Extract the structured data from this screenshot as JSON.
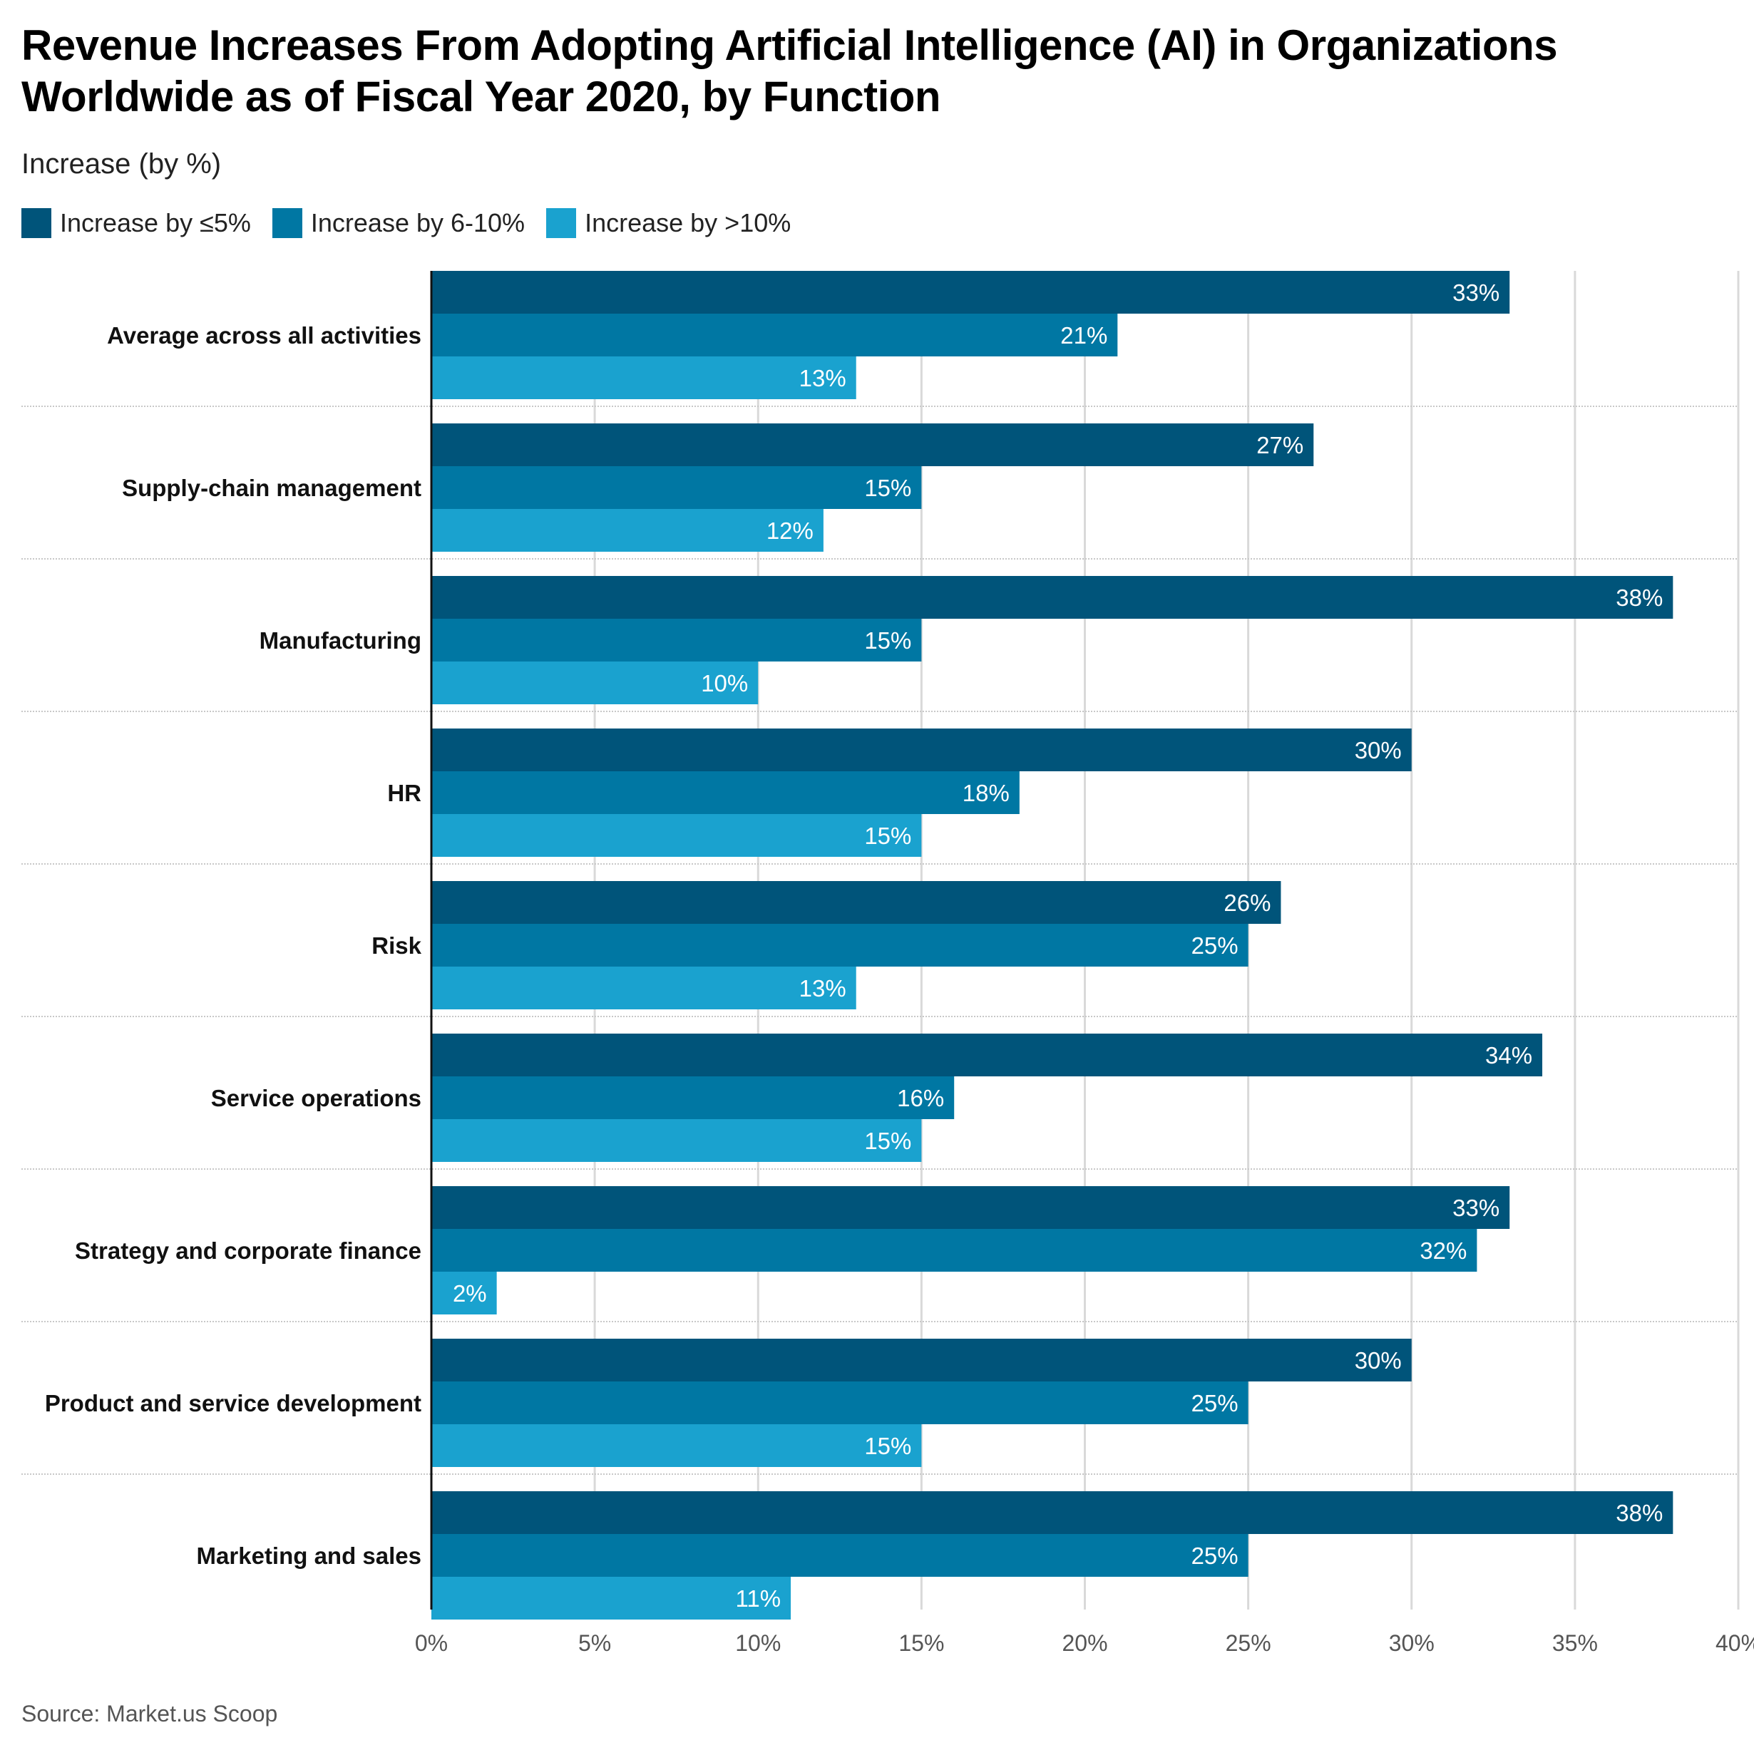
{
  "header": {
    "title": "Revenue Increases From Adopting Artificial Intelligence (AI) in Organizations Worldwide as of Fiscal Year 2020, by Function",
    "subtitle": "Increase (by %)"
  },
  "footer": {
    "source": "Source: Market.us Scoop"
  },
  "chart_data": {
    "type": "bar",
    "orientation": "horizontal",
    "title": "Revenue Increases From Adopting Artificial Intelligence (AI) in Organizations Worldwide as of Fiscal Year 2020, by Function",
    "subtitle": "Increase (by %)",
    "xlabel": "",
    "ylabel": "",
    "xlim": [
      0,
      40
    ],
    "x_ticks": [
      0,
      5,
      10,
      15,
      20,
      25,
      30,
      35,
      40
    ],
    "x_tick_labels": [
      "0%",
      "5%",
      "10%",
      "15%",
      "20%",
      "25%",
      "30%",
      "35%",
      "40%"
    ],
    "grid": true,
    "legend_position": "top-left",
    "categories": [
      "Average across all activities",
      "Supply-chain management",
      "Manufacturing",
      "HR",
      "Risk",
      "Service operations",
      "Strategy and corporate finance",
      "Product and service development",
      "Marketing and sales"
    ],
    "series": [
      {
        "name": "Increase by ≤5%",
        "color": "#00547a",
        "values": [
          33,
          27,
          38,
          30,
          26,
          34,
          33,
          30,
          38
        ]
      },
      {
        "name": "Increase by 6-10%",
        "color": "#0077a3",
        "values": [
          21,
          15,
          15,
          18,
          25,
          16,
          32,
          25,
          25
        ]
      },
      {
        "name": "Increase by >10%",
        "color": "#1aa2cf",
        "values": [
          13,
          12,
          10,
          15,
          13,
          15,
          2,
          15,
          11
        ]
      }
    ],
    "value_label_suffix": "%"
  }
}
